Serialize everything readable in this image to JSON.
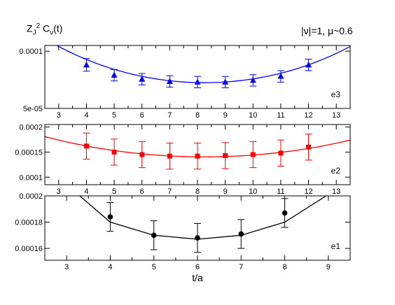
{
  "header": {
    "ylabel_main": "Z",
    "ylabel_sub": "J",
    "ylabel_sup": "2",
    "ylabel_c": "C",
    "ylabel_nu": "ν",
    "ylabel_arg": "(t)",
    "corner_label": "|ν|=1, μ~0.6"
  },
  "chart_data": [
    {
      "type": "scatter",
      "panel_label": "e3",
      "color": "#0000ff",
      "marker": "triangle",
      "xlim": [
        2.5,
        13.5
      ],
      "ylim": [
        5e-05,
        0.000105
      ],
      "x_ticks": [
        3,
        4,
        5,
        6,
        7,
        8,
        9,
        10,
        11,
        12,
        13
      ],
      "y_ticks": [
        5e-05,
        0.0001
      ],
      "y_tick_labels": [
        "5e-05",
        "0.0001"
      ],
      "points": [
        {
          "x": 4,
          "y": 8.8e-05,
          "err": 5.5e-06
        },
        {
          "x": 5,
          "y": 7.9e-05,
          "err": 5e-06
        },
        {
          "x": 6,
          "y": 7.55e-05,
          "err": 5e-06
        },
        {
          "x": 7,
          "y": 7.35e-05,
          "err": 5e-06
        },
        {
          "x": 8,
          "y": 7.3e-05,
          "err": 5e-06
        },
        {
          "x": 9,
          "y": 7.3e-05,
          "err": 5e-06
        },
        {
          "x": 10,
          "y": 7.45e-05,
          "err": 5e-06
        },
        {
          "x": 11,
          "y": 7.8e-05,
          "err": 5e-06
        },
        {
          "x": 12,
          "y": 8.8e-05,
          "err": 5e-06
        }
      ],
      "fit_curve": {
        "form": "cosh",
        "center": 8.25,
        "amplitude": 7.25e-05,
        "mass": 0.172
      }
    },
    {
      "type": "scatter",
      "panel_label": "e2",
      "color": "#ff0000",
      "marker": "square",
      "xlim": [
        2.5,
        13.5
      ],
      "ylim": [
        8.5e-05,
        0.000205
      ],
      "x_ticks": [
        3,
        4,
        5,
        6,
        7,
        8,
        9,
        10,
        11,
        12,
        13
      ],
      "y_ticks": [
        0.0001,
        0.00015,
        0.0002
      ],
      "y_tick_labels": [
        "0.0001",
        "0.00015",
        "0.0002"
      ],
      "points": [
        {
          "x": 4,
          "y": 0.000162,
          "err": 2.6e-05
        },
        {
          "x": 5,
          "y": 0.00015,
          "err": 2.6e-05
        },
        {
          "x": 6,
          "y": 0.000145,
          "err": 2.6e-05
        },
        {
          "x": 7,
          "y": 0.000142,
          "err": 2.6e-05
        },
        {
          "x": 8,
          "y": 0.000142,
          "err": 2.6e-05
        },
        {
          "x": 9,
          "y": 0.000143,
          "err": 2.6e-05
        },
        {
          "x": 10,
          "y": 0.000145,
          "err": 2.6e-05
        },
        {
          "x": 11,
          "y": 0.000148,
          "err": 2.6e-05
        },
        {
          "x": 12,
          "y": 0.00016,
          "err": 2.6e-05
        }
      ],
      "fit_curve": {
        "form": "cosh",
        "center": 8.25,
        "amplitude": 0.0001405,
        "mass": 0.129
      }
    },
    {
      "type": "line",
      "panel_label": "e1",
      "color": "#000000",
      "marker": "circle",
      "xlabel": "t/a",
      "xlim": [
        2.5,
        9.5
      ],
      "ylim": [
        0.000151,
        0.0002
      ],
      "x_ticks": [
        3,
        4,
        5,
        6,
        7,
        8,
        9
      ],
      "y_ticks": [
        0.00016,
        0.00018,
        0.0002
      ],
      "y_tick_labels": [
        "0.00016",
        "0.00018",
        "0.0002"
      ],
      "points": [
        {
          "x": 4,
          "y": 0.000184,
          "err": 1.1e-05
        },
        {
          "x": 5,
          "y": 0.00017,
          "err": 1.1e-05
        },
        {
          "x": 6,
          "y": 0.000168,
          "err": 1.1e-05
        },
        {
          "x": 7,
          "y": 0.000171,
          "err": 1.1e-05
        },
        {
          "x": 8,
          "y": 0.000187,
          "err": 1.1e-05
        }
      ],
      "fit_line": [
        {
          "x": 3.3,
          "y": 0.0002
        },
        {
          "x": 4,
          "y": 0.00018
        },
        {
          "x": 5,
          "y": 0.00017
        },
        {
          "x": 6,
          "y": 0.000167
        },
        {
          "x": 7,
          "y": 0.00017
        },
        {
          "x": 8,
          "y": 0.00018
        },
        {
          "x": 8.95,
          "y": 0.0002
        }
      ]
    }
  ]
}
